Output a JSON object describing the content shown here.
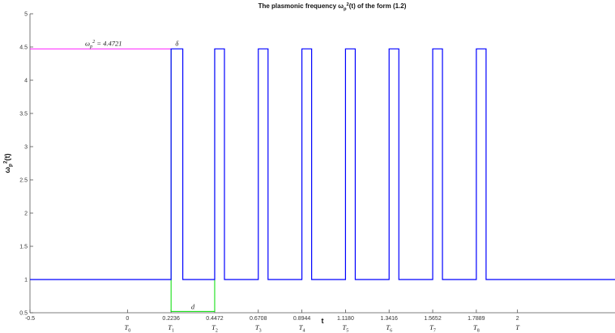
{
  "chart_data": {
    "type": "line",
    "title": "The plasmonic frequency ω_p^2(t) of the form (1.2)",
    "xlabel": "t",
    "ylabel": "ω_p^2(t)",
    "xlim": [
      -0.5,
      2.5
    ],
    "ylim": [
      0.5,
      5
    ],
    "grid": false,
    "x_ticks": [
      {
        "value": -0.5,
        "label": "-0.5",
        "sub": ""
      },
      {
        "value": 0,
        "label": "0",
        "sub": "T0"
      },
      {
        "value": 0.2236,
        "label": "0.2236",
        "sub": "T1"
      },
      {
        "value": 0.4472,
        "label": "0.4472",
        "sub": "T2"
      },
      {
        "value": 0.6708,
        "label": "0.6708",
        "sub": "T3"
      },
      {
        "value": 0.8944,
        "label": "0.8944",
        "sub": "T4"
      },
      {
        "value": 1.118,
        "label": "1.1180",
        "sub": "T5"
      },
      {
        "value": 1.3416,
        "label": "1.3416",
        "sub": "T6"
      },
      {
        "value": 1.5652,
        "label": "1.5652",
        "sub": "T7"
      },
      {
        "value": 1.7889,
        "label": "1.7889",
        "sub": "T8"
      },
      {
        "value": 2,
        "label": "2",
        "sub": "T"
      }
    ],
    "y_ticks": [
      {
        "value": 0.5,
        "label": "0.5"
      },
      {
        "value": 1,
        "label": "1"
      },
      {
        "value": 1.5,
        "label": "1.5"
      },
      {
        "value": 2,
        "label": "2"
      },
      {
        "value": 2.5,
        "label": "2.5"
      },
      {
        "value": 3,
        "label": "3"
      },
      {
        "value": 3.5,
        "label": "3.5"
      },
      {
        "value": 4,
        "label": "4"
      },
      {
        "value": 4.5,
        "label": "4.5"
      },
      {
        "value": 5,
        "label": "5"
      }
    ],
    "series": [
      {
        "color": "#0000ff",
        "baseline": 1,
        "peak": 4.4721,
        "pulses": [
          [
            0.2236,
            0.2836
          ],
          [
            0.4472,
            0.4972
          ],
          [
            0.6708,
            0.7208
          ],
          [
            0.8944,
            0.9444
          ],
          [
            1.118,
            1.168
          ],
          [
            1.3416,
            1.3916
          ],
          [
            1.5652,
            1.6152
          ],
          [
            1.7889,
            1.8389
          ]
        ]
      }
    ],
    "annotations": {
      "peak_label": "ω_p^2 = 4.4721",
      "peak_line_color": "#ff00ff",
      "peak_line_x": [
        -0.5,
        0.2236
      ],
      "delta_label": "δ",
      "delta_at": [
        0.2236,
        0.2836
      ],
      "d_label": "d",
      "d_color": "#00dd00",
      "d_span": [
        0.2236,
        0.4472
      ],
      "d_y": 0.52
    }
  }
}
